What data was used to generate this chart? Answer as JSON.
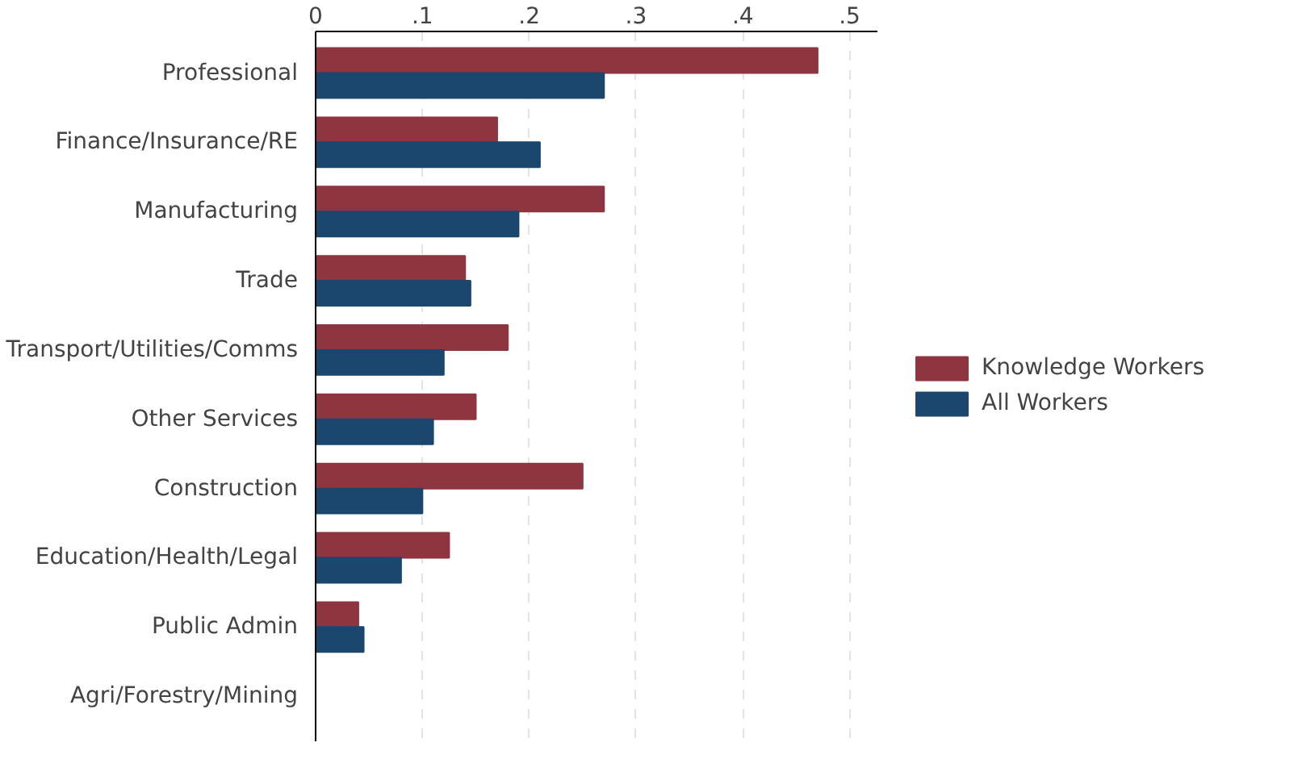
{
  "chart_data": {
    "type": "bar",
    "orientation": "horizontal",
    "categories": [
      "Professional",
      "Finance/Insurance/RE",
      "Manufacturing",
      "Trade",
      "Transport/Utilities/Comms",
      "Other Services",
      "Construction",
      "Education/Health/Legal",
      "Public Admin",
      "Agri/Forestry/Mining"
    ],
    "series": [
      {
        "name": "Knowledge Workers",
        "color": "#8e3540",
        "values": [
          0.47,
          0.17,
          0.27,
          0.14,
          0.18,
          0.15,
          0.25,
          0.125,
          0.04,
          0
        ]
      },
      {
        "name": "All Workers",
        "color": "#1b466d",
        "values": [
          0.27,
          0.21,
          0.19,
          0.145,
          0.12,
          0.11,
          0.1,
          0.08,
          0.045,
          0
        ]
      }
    ],
    "xlim": [
      0,
      0.526
    ],
    "xticks": [
      0,
      {
        "value": 0.1,
        "label": ".1"
      },
      {
        "value": 0.2,
        "label": ".2"
      },
      {
        "value": 0.3,
        "label": ".3"
      },
      {
        "value": 0.4,
        "label": ".4"
      },
      {
        "value": 0.5,
        "label": ".5"
      }
    ],
    "grid": "x",
    "legend": "right"
  }
}
